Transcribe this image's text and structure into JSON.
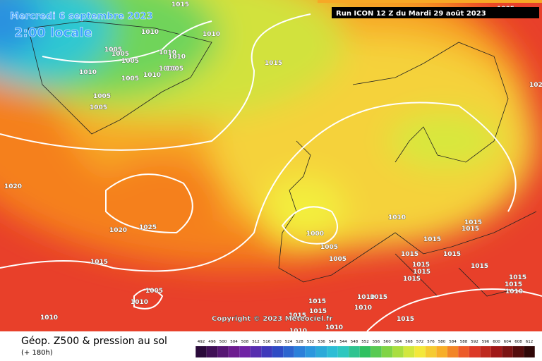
{
  "header": {
    "date": "Mercredi 6 septembre 2023",
    "time": "2:00 locale",
    "run": "Run ICON 12 Z du Mardi 29 août 2023"
  },
  "copyright": "Copyright © 2023 Meteociel.fr",
  "footer": {
    "title": "Géop. Z500 & pression au sol",
    "lead": "(+ 180h)"
  },
  "legend": {
    "ticks": [
      492,
      496,
      500,
      504,
      508,
      512,
      516,
      520,
      524,
      528,
      532,
      536,
      540,
      544,
      548,
      552,
      556,
      560,
      564,
      568,
      572,
      576,
      580,
      584,
      588,
      592,
      596,
      600,
      604,
      608,
      612
    ]
  },
  "isobar_labels": [
    "1015",
    "1010",
    "1010",
    "1005",
    "1005",
    "1005",
    "1010",
    "1010",
    "1005",
    "1005",
    "1010",
    "1005",
    "1010",
    "1015",
    "1005",
    "1005",
    "1020",
    "1025",
    "1020",
    "1015",
    "1010",
    "1000",
    "1005",
    "1005",
    "1015",
    "1015",
    "1015",
    "1015",
    "1015",
    "1015",
    "1015",
    "1015",
    "1015",
    "1015",
    "1015",
    "1010",
    "1005",
    "1010",
    "1010",
    "1015",
    "1015",
    "1010",
    "1015",
    "1015",
    "1010",
    "1015",
    "1010",
    "1010",
    "1005",
    "102"
  ]
}
